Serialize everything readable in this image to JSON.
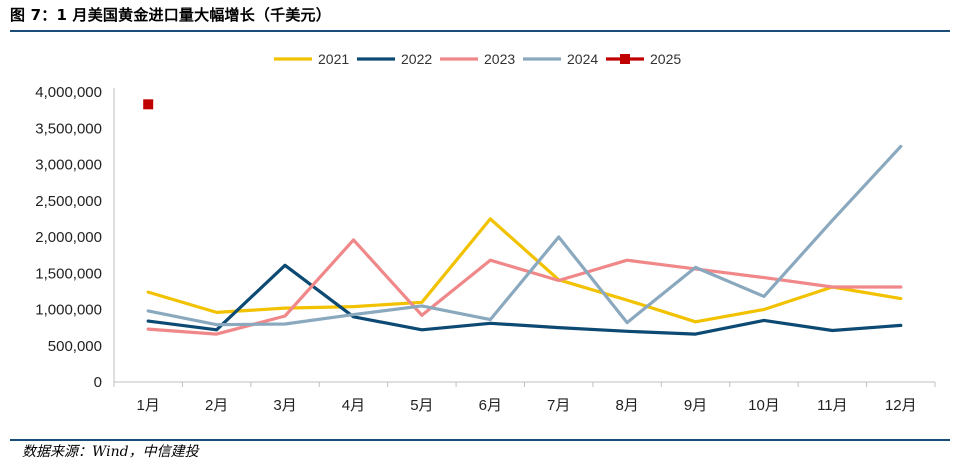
{
  "figure_title": "图 7：1 月美国黄金进口量大幅增长（千美元）",
  "source_note": "数据来源：Wind，中信建投",
  "chart_data": {
    "type": "line",
    "title": "图 7：1 月美国黄金进口量大幅增长（千美元）",
    "xlabel": "",
    "ylabel": "",
    "categories": [
      "1月",
      "2月",
      "3月",
      "4月",
      "5月",
      "6月",
      "7月",
      "8月",
      "9月",
      "10月",
      "11月",
      "12月"
    ],
    "ylim": [
      0,
      4000000
    ],
    "yticks": [
      0,
      500000,
      1000000,
      1500000,
      2000000,
      2500000,
      3000000,
      3500000,
      4000000
    ],
    "ytick_labels": [
      "0",
      "500,000",
      "1,000,000",
      "1,500,000",
      "2,000,000",
      "2,500,000",
      "3,000,000",
      "3,500,000",
      "4,000,000"
    ],
    "grid": false,
    "legend_position": "top-center",
    "series": [
      {
        "name": "2021",
        "color": "#f2c200",
        "marker": "none",
        "values": [
          1240000,
          960000,
          1020000,
          1040000,
          1100000,
          2250000,
          1410000,
          1130000,
          830000,
          1000000,
          1310000,
          1150000
        ]
      },
      {
        "name": "2022",
        "color": "#0d4a73",
        "marker": "none",
        "values": [
          840000,
          720000,
          1610000,
          900000,
          720000,
          810000,
          750000,
          700000,
          660000,
          850000,
          710000,
          780000
        ]
      },
      {
        "name": "2023",
        "color": "#f0888a",
        "marker": "none",
        "values": [
          730000,
          660000,
          910000,
          1960000,
          920000,
          1680000,
          1400000,
          1680000,
          1560000,
          1440000,
          1310000,
          1310000
        ]
      },
      {
        "name": "2024",
        "color": "#8ba9be",
        "marker": "none",
        "values": [
          980000,
          790000,
          800000,
          930000,
          1050000,
          860000,
          2000000,
          820000,
          1580000,
          1180000,
          2230000,
          3250000
        ]
      },
      {
        "name": "2025",
        "color": "#c00000",
        "marker": "square",
        "values": [
          3830000,
          null,
          null,
          null,
          null,
          null,
          null,
          null,
          null,
          null,
          null,
          null
        ]
      }
    ]
  }
}
